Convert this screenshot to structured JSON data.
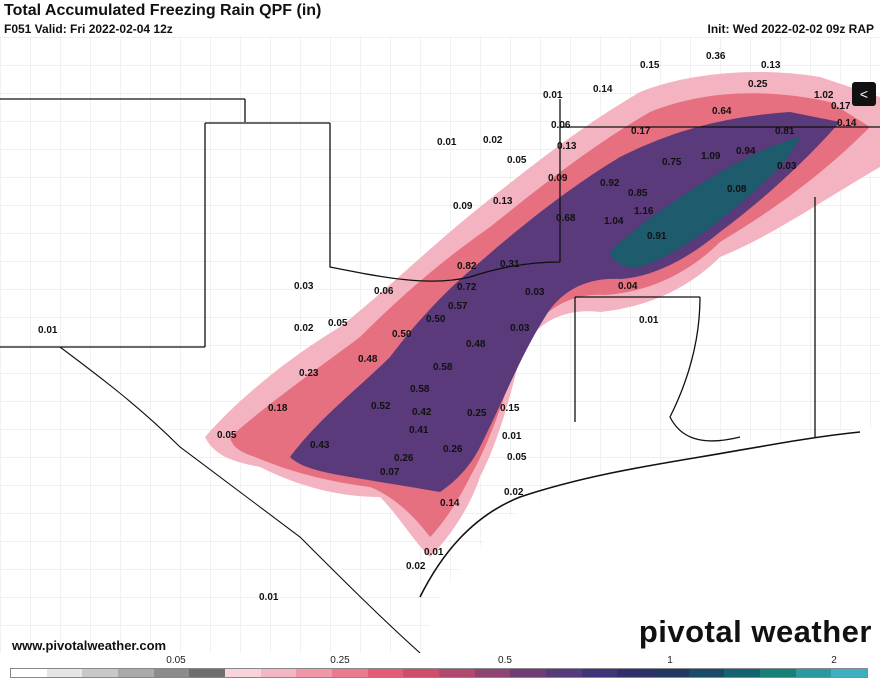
{
  "header": {
    "title": "Total Accumulated Freezing Rain QPF (in)",
    "valid": "F051 Valid: Fri 2022-02-04 12z",
    "init": "Init: Wed 2022-02-02 09z RAP"
  },
  "footer": {
    "website": "www.pivotalweather.com",
    "brand": "pivotal weather"
  },
  "legend": {
    "ticks": [
      "0.05",
      "0.25",
      "0.5",
      "1",
      "2"
    ],
    "colors": [
      "#ffffff",
      "#e6e6e6",
      "#c8c8c8",
      "#aaaaaa",
      "#8c8c8c",
      "#6e6e6e",
      "#f9d3dc",
      "#f5b6c4",
      "#f097aa",
      "#ea7b8f",
      "#e35e74",
      "#cf4d6c",
      "#b04870",
      "#8f4373",
      "#6f3c74",
      "#563a7b",
      "#3f3679",
      "#2f2f69",
      "#233563",
      "#1a4a6a",
      "#136470",
      "#168078",
      "#2a9aa0",
      "#3bb0c0"
    ]
  },
  "map_labels": [
    "0.15",
    "0.36",
    "0.13",
    "0.01",
    "0.14",
    "0.25",
    "1.02",
    "0.17",
    "0.64",
    "0.14",
    "0.06",
    "0.81",
    "0.01",
    "0.02",
    "0.13",
    "0.17",
    "1.09",
    "0.94",
    "0.05",
    "0.75",
    "0.03",
    "0.09",
    "0.92",
    "0.09",
    "0.13",
    "0.85",
    "0.08",
    "1.16",
    "0.68",
    "1.04",
    "0.91",
    "0.82",
    "0.31",
    "0.03",
    "0.72",
    "0.06",
    "0.04",
    "0.57",
    "0.05",
    "0.03",
    "0.02",
    "0.50",
    "0.01",
    "0.03",
    "0.50",
    "0.48",
    "0.01",
    "0.48",
    "0.23",
    "0.58",
    "0.58",
    "0.18",
    "0.52",
    "0.42",
    "0.25",
    "0.15",
    "0.05",
    "0.41",
    "0.01",
    "0.43",
    "0.26",
    "0.26",
    "0.05",
    "0.07",
    "0.02",
    "0.14",
    "0.01",
    "0.02",
    "0.01"
  ]
}
